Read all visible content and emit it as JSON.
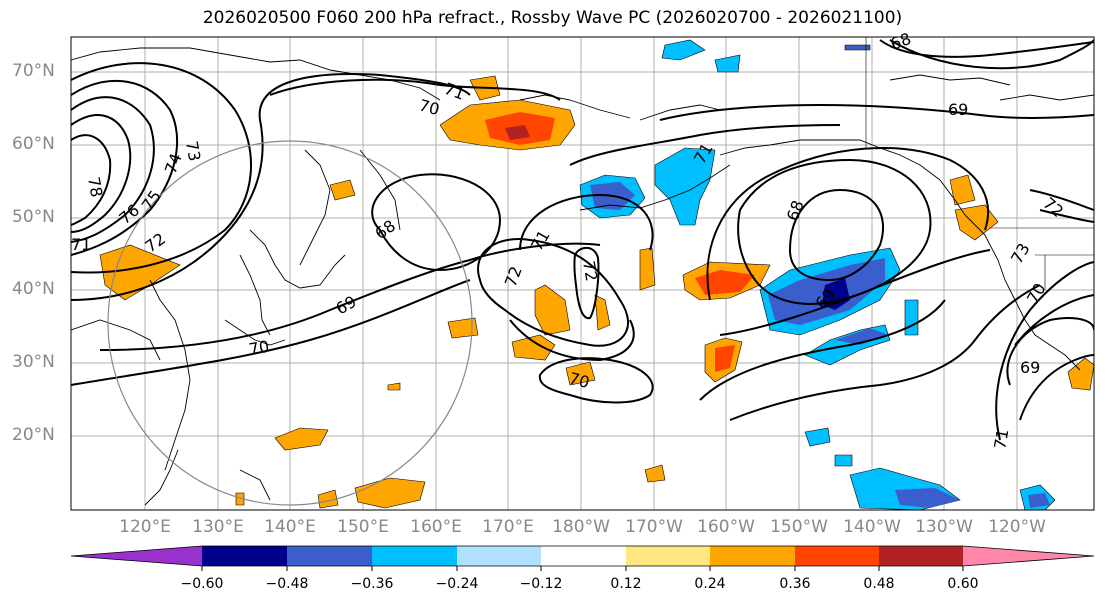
{
  "title": "2026020500 F060 200 hPa refract., Rossby Wave PC (2026020700 - 2026021100)",
  "map": {
    "projection": "PlateCarree",
    "lon_range": [
      107,
      249
    ],
    "lat_range": [
      10,
      75
    ],
    "lat_labels": [
      "70°N",
      "60°N",
      "50°N",
      "40°N",
      "30°N",
      "20°N"
    ],
    "lon_labels": [
      "120°E",
      "130°E",
      "140°E",
      "150°E",
      "160°E",
      "170°E",
      "180°W",
      "170°W",
      "160°W",
      "150°W",
      "140°W",
      "130°W",
      "120°W"
    ],
    "contour_labels": [
      "71",
      "70",
      "73",
      "74",
      "75",
      "76",
      "78",
      "72",
      "71",
      "68",
      "69",
      "70",
      "71",
      "72",
      "72",
      "70",
      "68",
      "69",
      "69",
      "68",
      "72",
      "73",
      "70",
      "69",
      "71",
      "71"
    ],
    "contour_color": "#000000",
    "grid_color": "#999999",
    "circle_color": "#888888"
  },
  "colorbar": {
    "ticks": [
      "−0.60",
      "−0.48",
      "−0.36",
      "−0.24",
      "−0.12",
      "0.12",
      "0.24",
      "0.36",
      "0.48",
      "0.60"
    ],
    "colors": [
      "#9932cc",
      "#00008b",
      "#3a5fcd",
      "#00bfff",
      "#b0e0ff",
      "#ffffff",
      "#ffe680",
      "#ffa500",
      "#ff4500",
      "#b22222",
      "#ff88aa"
    ],
    "extend": "both"
  }
}
